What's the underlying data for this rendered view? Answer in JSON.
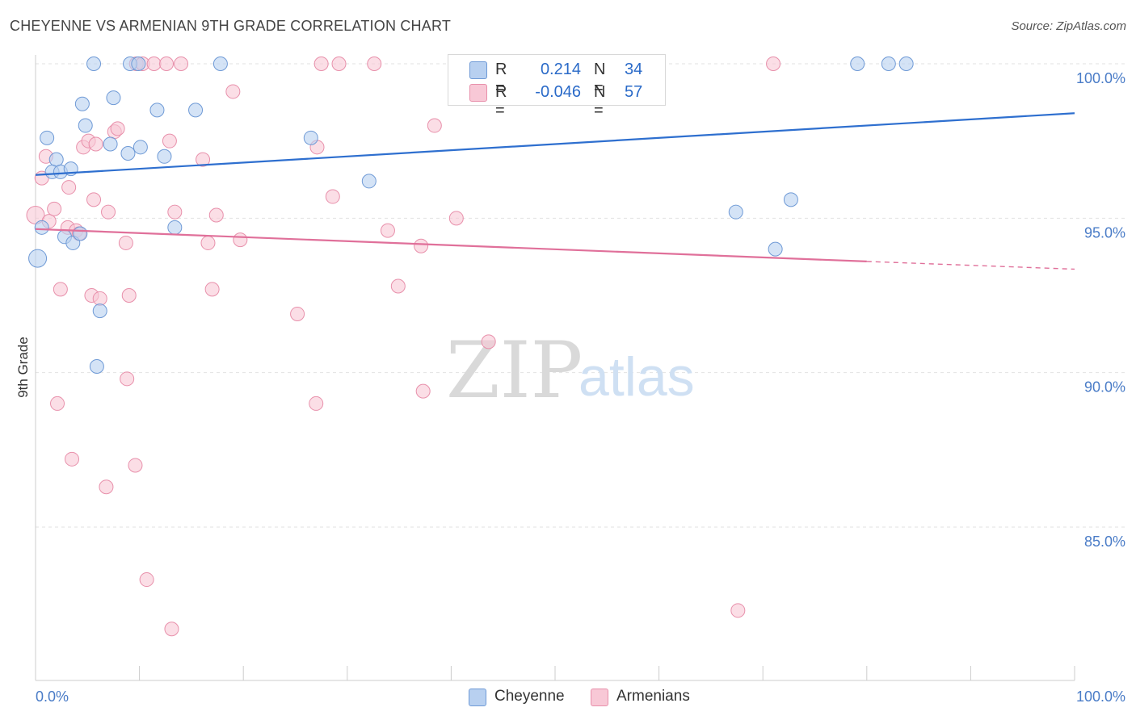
{
  "title": "CHEYENNE VS ARMENIAN 9TH GRADE CORRELATION CHART",
  "source": "Source: ZipAtlas.com",
  "watermark": {
    "part1": "ZIP",
    "part2": "atlas"
  },
  "stats": [
    {
      "r_label": "R =",
      "r_value": "0.214",
      "n_label": "N =",
      "n_value": "34",
      "color": "#b8d0f0",
      "border": "#6f9ad6"
    },
    {
      "r_label": "R =",
      "r_value": "-0.046",
      "n_label": "N =",
      "n_value": "57",
      "color": "#f8c8d6",
      "border": "#e890ab"
    }
  ],
  "legend": [
    {
      "label": "Cheyenne",
      "color": "#b8d0f0",
      "border": "#6f9ad6"
    },
    {
      "label": "Armenians",
      "color": "#f8c8d6",
      "border": "#e890ab"
    }
  ],
  "chart_data": {
    "type": "scatter",
    "title": "CHEYENNE VS ARMENIAN 9TH GRADE CORRELATION CHART",
    "xlabel": "",
    "ylabel": "9th Grade",
    "xlim": [
      0,
      100
    ],
    "ylim": [
      80.5,
      100.5
    ],
    "x_tick_labels": [
      "0.0%",
      "100.0%"
    ],
    "y_ticks": [
      {
        "value": 100,
        "label": "100.0%"
      },
      {
        "value": 95,
        "label": "95.0%"
      },
      {
        "value": 90,
        "label": "90.0%"
      },
      {
        "value": 85,
        "label": "85.0%"
      }
    ],
    "series": [
      {
        "name": "Cheyenne",
        "color": "#6f9ad6",
        "fill": "#b8d0f0",
        "trend": {
          "x0": 0,
          "y0": 96.4,
          "x1": 100,
          "y1": 98.4,
          "color": "#2e6fcf",
          "dashed_from": null
        },
        "points": [
          [
            5.6,
            100.0
          ],
          [
            9.1,
            100.0
          ],
          [
            9.9,
            100.0
          ],
          [
            17.8,
            100.0
          ],
          [
            79.1,
            100.0
          ],
          [
            82.1,
            100.0
          ],
          [
            83.8,
            100.0
          ],
          [
            4.5,
            98.7
          ],
          [
            7.5,
            98.9
          ],
          [
            11.7,
            98.5
          ],
          [
            15.4,
            98.5
          ],
          [
            1.1,
            97.6
          ],
          [
            4.8,
            98.0
          ],
          [
            7.2,
            97.4
          ],
          [
            8.9,
            97.1
          ],
          [
            10.1,
            97.3
          ],
          [
            12.4,
            97.0
          ],
          [
            26.5,
            97.6
          ],
          [
            2.0,
            96.9
          ],
          [
            1.6,
            96.5
          ],
          [
            2.4,
            96.5
          ],
          [
            3.4,
            96.6
          ],
          [
            32.1,
            96.2
          ],
          [
            0.6,
            94.7
          ],
          [
            2.8,
            94.4
          ],
          [
            3.6,
            94.2
          ],
          [
            4.3,
            94.5
          ],
          [
            13.4,
            94.7
          ],
          [
            67.4,
            95.2
          ],
          [
            72.7,
            95.6
          ],
          [
            71.2,
            94.0
          ],
          [
            0.2,
            93.7
          ],
          [
            6.2,
            92.0
          ],
          [
            5.9,
            90.2
          ]
        ]
      },
      {
        "name": "Armenians",
        "color": "#e890ab",
        "fill": "#f8c8d6",
        "trend": {
          "x0": 0,
          "y0": 94.65,
          "x1": 80,
          "y1": 93.6,
          "color": "#e0709a",
          "dashed_from": 80,
          "x2": 100,
          "y2": 93.35
        },
        "points": [
          [
            9.7,
            100.0
          ],
          [
            10.3,
            100.0
          ],
          [
            11.4,
            100.0
          ],
          [
            12.6,
            100.0
          ],
          [
            14.0,
            100.0
          ],
          [
            27.5,
            100.0
          ],
          [
            29.2,
            100.0
          ],
          [
            32.6,
            100.0
          ],
          [
            71.0,
            100.0
          ],
          [
            19.0,
            99.1
          ],
          [
            38.4,
            98.0
          ],
          [
            7.6,
            97.8
          ],
          [
            7.9,
            97.9
          ],
          [
            4.6,
            97.3
          ],
          [
            5.1,
            97.5
          ],
          [
            5.8,
            97.4
          ],
          [
            12.9,
            97.5
          ],
          [
            16.1,
            96.9
          ],
          [
            27.1,
            97.3
          ],
          [
            1.0,
            97.0
          ],
          [
            0.6,
            96.3
          ],
          [
            3.2,
            96.0
          ],
          [
            5.6,
            95.6
          ],
          [
            28.6,
            95.7
          ],
          [
            0.0,
            95.1
          ],
          [
            1.3,
            94.9
          ],
          [
            1.8,
            95.3
          ],
          [
            7.0,
            95.2
          ],
          [
            13.4,
            95.2
          ],
          [
            17.4,
            95.1
          ],
          [
            40.5,
            95.0
          ],
          [
            3.1,
            94.7
          ],
          [
            3.9,
            94.6
          ],
          [
            4.2,
            94.5
          ],
          [
            33.9,
            94.6
          ],
          [
            8.7,
            94.2
          ],
          [
            16.6,
            94.2
          ],
          [
            19.7,
            94.3
          ],
          [
            37.1,
            94.1
          ],
          [
            2.4,
            92.7
          ],
          [
            5.4,
            92.5
          ],
          [
            6.2,
            92.4
          ],
          [
            9.0,
            92.5
          ],
          [
            17.0,
            92.7
          ],
          [
            34.9,
            92.8
          ],
          [
            25.2,
            91.9
          ],
          [
            43.6,
            91.0
          ],
          [
            8.8,
            89.8
          ],
          [
            2.1,
            89.0
          ],
          [
            27.0,
            89.0
          ],
          [
            37.3,
            89.4
          ],
          [
            3.5,
            87.2
          ],
          [
            9.6,
            87.0
          ],
          [
            6.8,
            86.3
          ],
          [
            10.7,
            83.3
          ],
          [
            67.6,
            82.3
          ],
          [
            13.1,
            81.7
          ]
        ]
      }
    ]
  }
}
